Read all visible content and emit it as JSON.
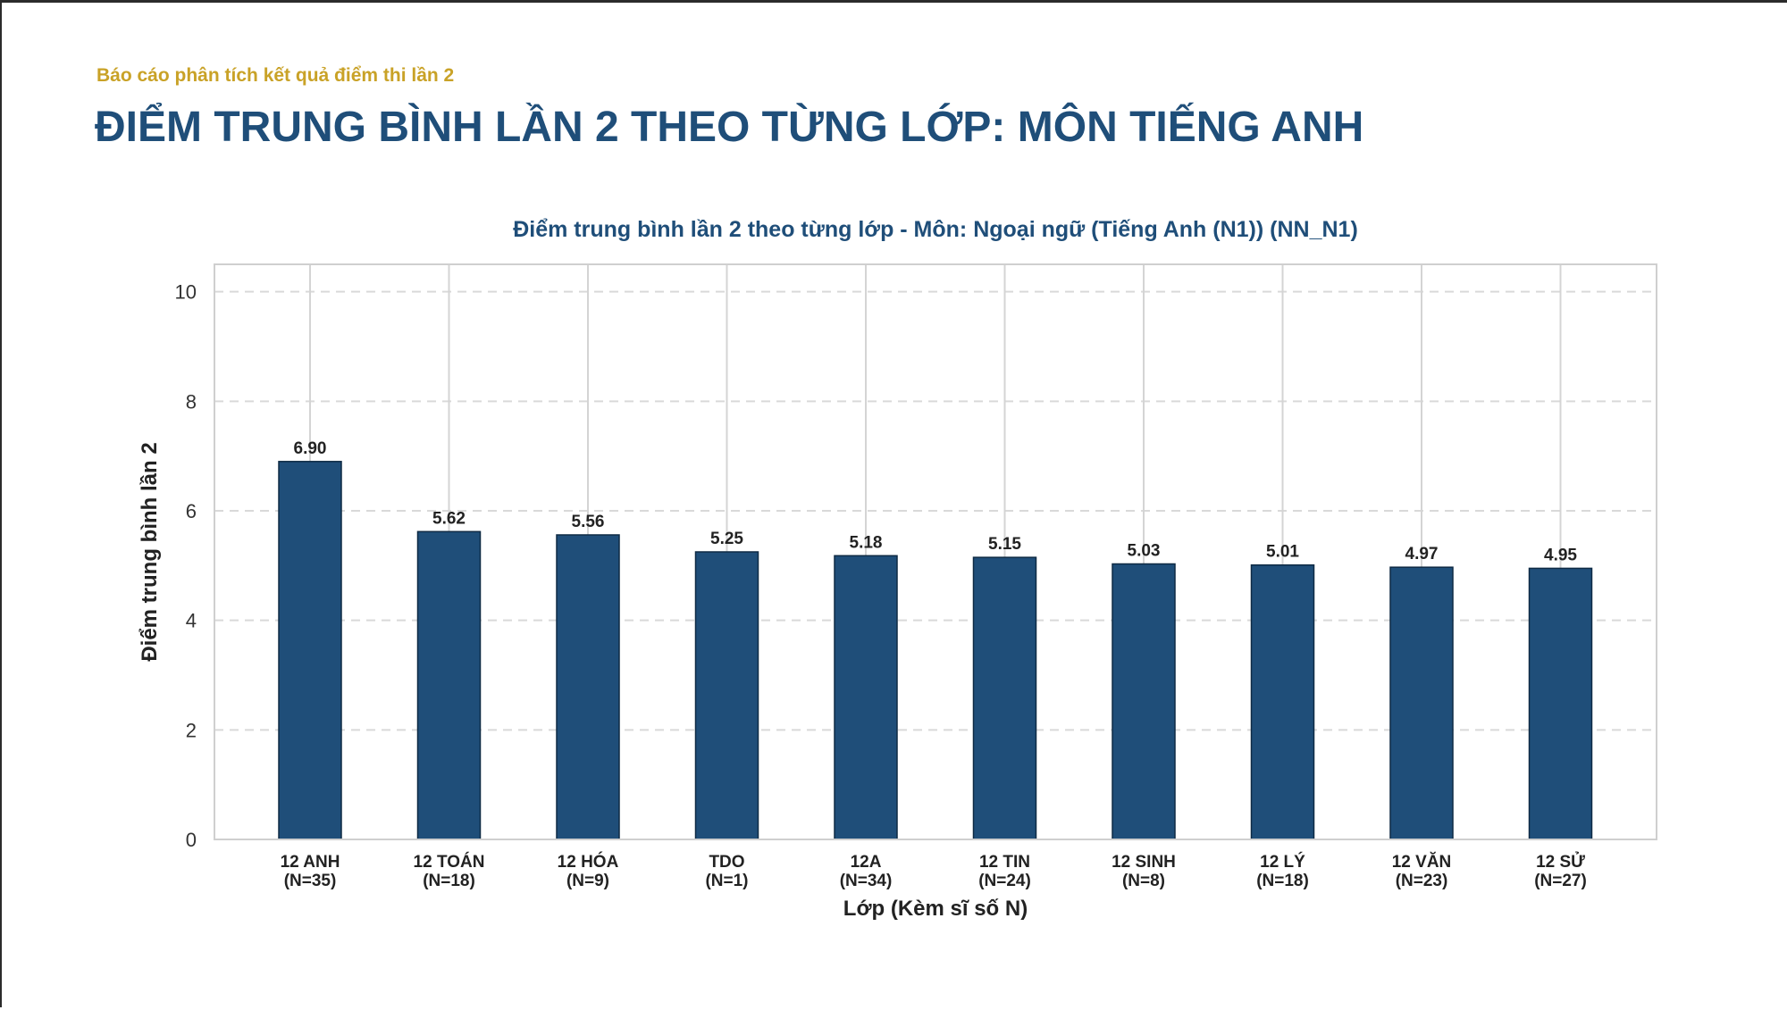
{
  "header": {
    "subtitle": "Báo cáo phân tích kết quả điểm thi lần 2",
    "title": "ĐIỂM TRUNG BÌNH LẦN 2 THEO TỪNG LỚP: MÔN TIẾNG ANH"
  },
  "colors": {
    "bar": "#1f4e79",
    "title": "#1f4e79",
    "subtitle": "#c9a227"
  },
  "chart_data": {
    "type": "bar",
    "title": "Điểm trung bình lần 2 theo từng lớp - Môn: Ngoại ngữ (Tiếng Anh (N1)) (NN_N1)",
    "xlabel": "Lớp (Kèm sĩ số N)",
    "ylabel": "Điểm trung bình lần 2",
    "ylim": [
      0,
      10.5
    ],
    "yticks": [
      0,
      2,
      4,
      6,
      8,
      10
    ],
    "grid": true,
    "categories": [
      [
        "12 ANH",
        "(N=35)"
      ],
      [
        "12 TOÁN",
        "(N=18)"
      ],
      [
        "12 HÓA",
        "(N=9)"
      ],
      [
        "TDO",
        "(N=1)"
      ],
      [
        "12A",
        "(N=34)"
      ],
      [
        "12 TIN",
        "(N=24)"
      ],
      [
        "12 SINH",
        "(N=8)"
      ],
      [
        "12 LÝ",
        "(N=18)"
      ],
      [
        "12 VĂN",
        "(N=23)"
      ],
      [
        "12 SỬ",
        "(N=27)"
      ]
    ],
    "values": [
      6.9,
      5.62,
      5.56,
      5.25,
      5.18,
      5.15,
      5.03,
      5.01,
      4.97,
      4.95
    ],
    "value_labels": [
      "6.90",
      "5.62",
      "5.56",
      "5.25",
      "5.18",
      "5.15",
      "5.03",
      "5.01",
      "4.97",
      "4.95"
    ]
  }
}
